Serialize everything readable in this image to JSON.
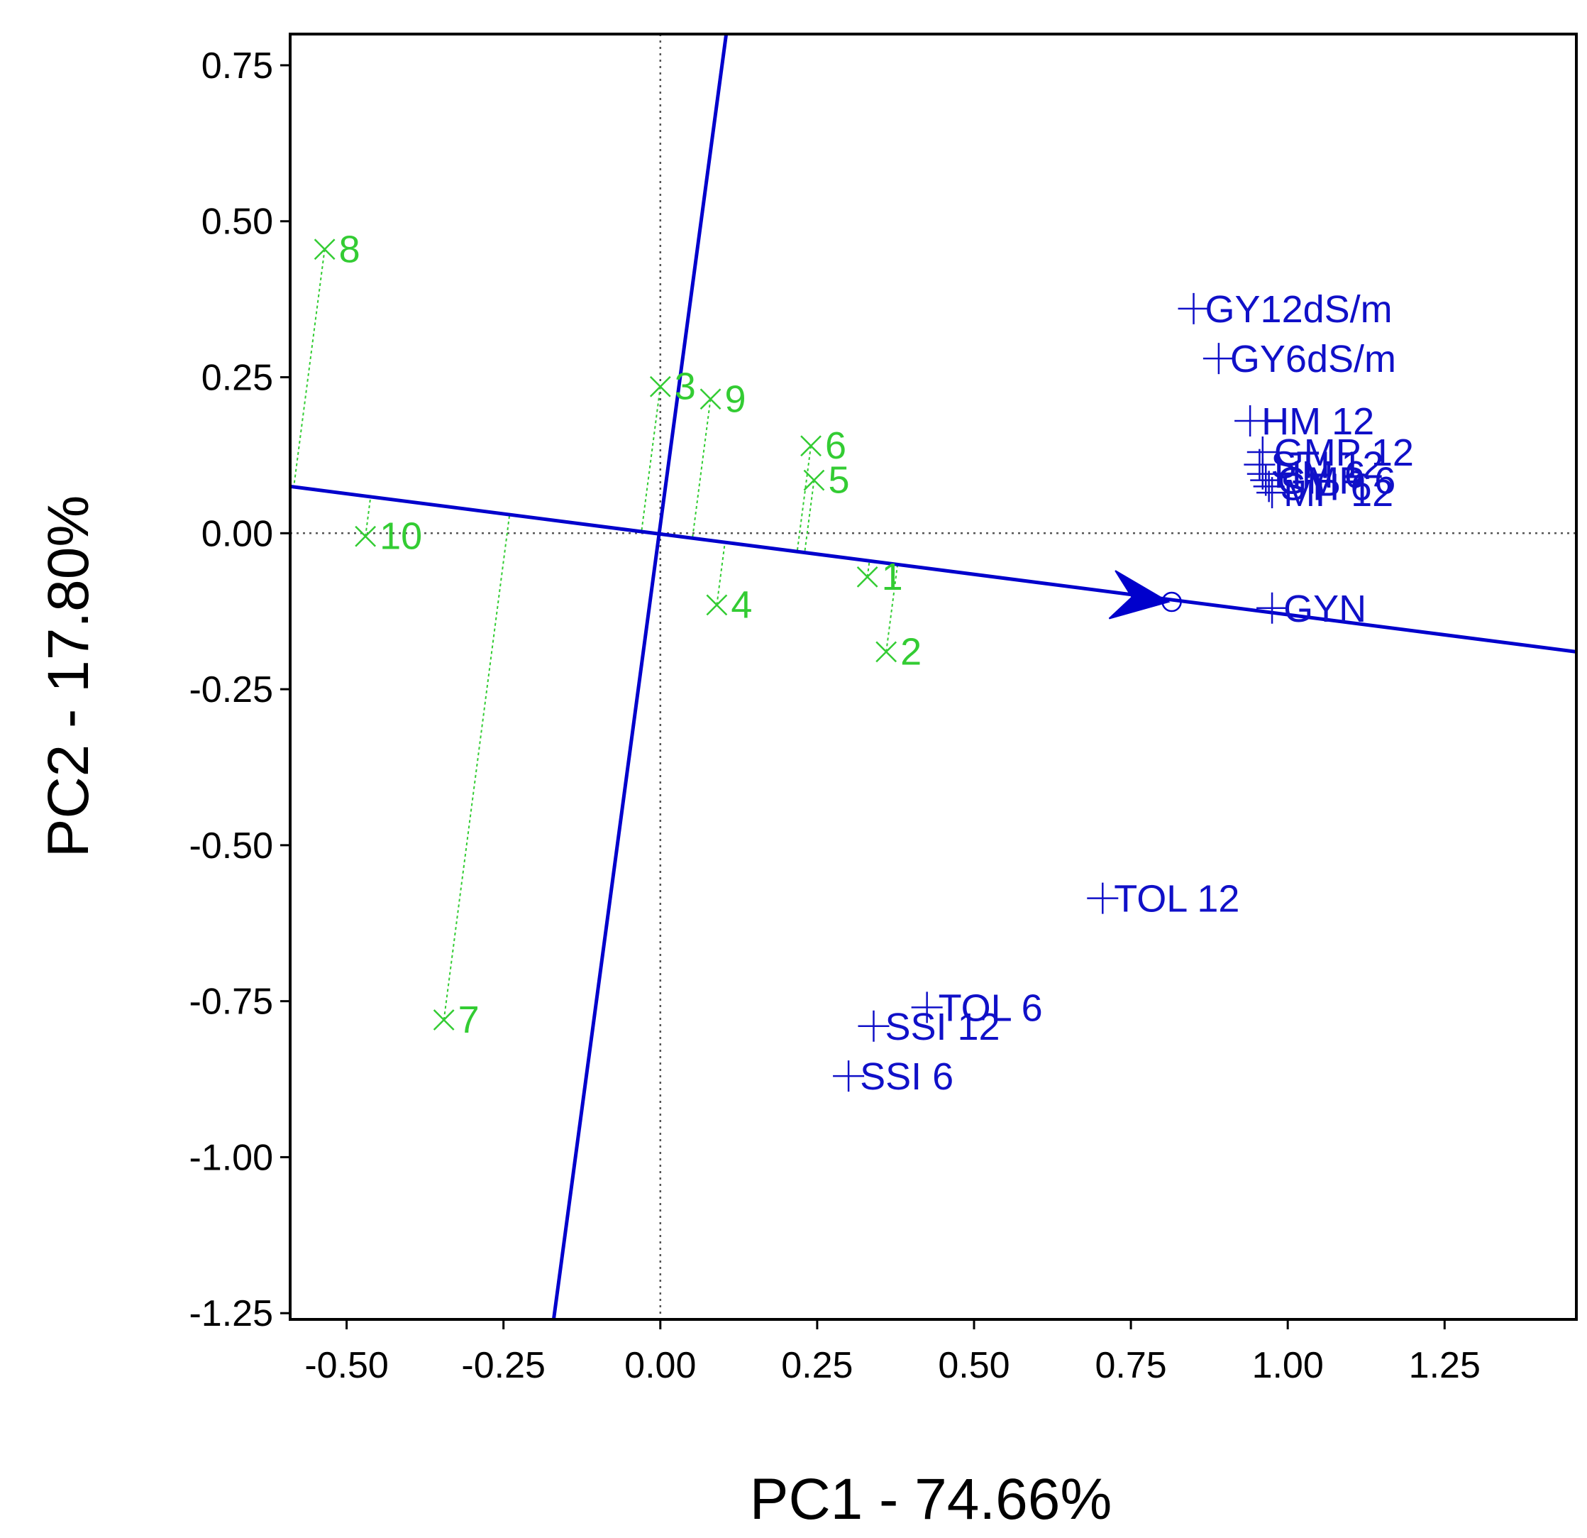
{
  "chart_data": {
    "type": "scatter",
    "subtype": "GGE biplot - average tester coordination",
    "xlabel": "PC1 - 74.66%",
    "ylabel": "PC2 - 17.80%",
    "xlim": [
      -0.59,
      1.46
    ],
    "ylim": [
      -1.26,
      0.8
    ],
    "x_ticks": [
      -0.5,
      -0.25,
      0.0,
      0.25,
      0.5,
      0.75,
      1.0,
      1.25
    ],
    "y_ticks": [
      0.75,
      0.5,
      0.25,
      0.0,
      -0.25,
      -0.5,
      -0.75,
      -1.0,
      -1.25
    ],
    "x_tick_labels": [
      "-0.50",
      "-0.25",
      "0.00",
      "0.25",
      "0.50",
      "0.75",
      "1.00",
      "1.25"
    ],
    "y_tick_labels": [
      "0.75",
      "0.50",
      "0.25",
      "0.00",
      "-0.25",
      "-0.50",
      "-0.75",
      "-1.00",
      "-1.25"
    ],
    "grid": false,
    "zero_lines": true,
    "colors": {
      "genotype": "#33cc33",
      "trait": "#1010c8",
      "axis_line": "#0000cc",
      "frame": "#000000"
    },
    "genotype_series": {
      "name": "Genotypes",
      "marker": "x",
      "points": [
        {
          "label": "1",
          "x": 0.33,
          "y": -0.07
        },
        {
          "label": "2",
          "x": 0.36,
          "y": -0.19
        },
        {
          "label": "3",
          "x": 0.0,
          "y": 0.235
        },
        {
          "label": "4",
          "x": 0.09,
          "y": -0.115
        },
        {
          "label": "5",
          "x": 0.245,
          "y": 0.085
        },
        {
          "label": "6",
          "x": 0.24,
          "y": 0.14
        },
        {
          "label": "7",
          "x": -0.345,
          "y": -0.78
        },
        {
          "label": "8",
          "x": -0.535,
          "y": 0.455
        },
        {
          "label": "9",
          "x": 0.08,
          "y": 0.215
        },
        {
          "label": "10",
          "x": -0.47,
          "y": -0.005
        }
      ]
    },
    "trait_series": {
      "name": "Traits",
      "marker": "+",
      "points": [
        {
          "label": "GY12dS/m",
          "x": 0.85,
          "y": 0.36
        },
        {
          "label": "GY6dS/m",
          "x": 0.89,
          "y": 0.28
        },
        {
          "label": "HM 12",
          "x": 0.94,
          "y": 0.18
        },
        {
          "label": "GMP 12",
          "x": 0.96,
          "y": 0.13
        },
        {
          "label": "STI 12",
          "x": 0.955,
          "y": 0.11
        },
        {
          "label": "HM 6",
          "x": 0.96,
          "y": 0.095
        },
        {
          "label": "GMP 6",
          "x": 0.965,
          "y": 0.085
        },
        {
          "label": "STI 6",
          "x": 0.97,
          "y": 0.075
        },
        {
          "label": "MP 12",
          "x": 0.975,
          "y": 0.065
        },
        {
          "label": "GYN",
          "x": 0.975,
          "y": -0.12
        },
        {
          "label": "TOL 12",
          "x": 0.705,
          "y": -0.585
        },
        {
          "label": "TOL 6",
          "x": 0.425,
          "y": -0.76
        },
        {
          "label": "SSI 12",
          "x": 0.34,
          "y": -0.79
        },
        {
          "label": "SSI 6",
          "x": 0.3,
          "y": -0.87
        }
      ]
    },
    "average_environment_axis": {
      "line_from": [
        -0.59,
        0.075
      ],
      "line_to": [
        1.46,
        -0.19
      ],
      "arrow_tip": [
        0.81,
        -0.11
      ],
      "circle": [
        0.815,
        -0.11
      ],
      "perpendicular_from": [
        -0.17,
        -1.26
      ],
      "perpendicular_to": [
        0.105,
        0.8
      ]
    }
  }
}
